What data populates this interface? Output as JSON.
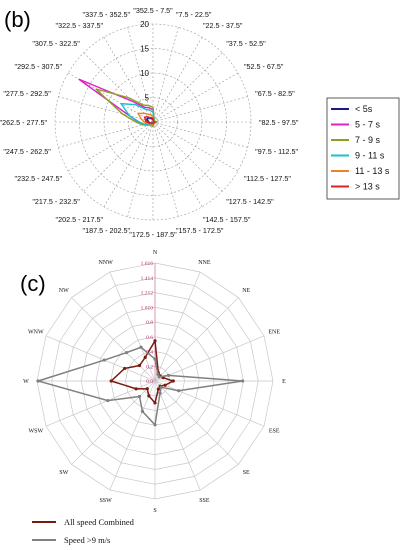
{
  "panels": {
    "b_label": "(b)",
    "c_label": "(c)"
  },
  "chart_data": [
    {
      "type": "radar",
      "panel": "(b)",
      "directions": [
        "\"352.5 - 7.5\"",
        "\"7.5 - 22.5\"",
        "\"22.5 - 37.5\"",
        "\"37.5 - 52.5\"",
        "\"52.5 - 67.5\"",
        "\"67.5 - 82.5\"",
        "\"82.5 - 97.5\"",
        "\"97.5 - 112.5\"",
        "\"112.5 - 127.5\"",
        "\"127.5 - 142.5\"",
        "\"142.5 - 157.5\"",
        "\"157.5 - 172.5\"",
        "\"172.5 - 187.5\"",
        "\"187.5 - 202.5\"",
        "\"202.5 - 217.5\"",
        "\"217.5 - 232.5\"",
        "\"232.5 - 247.5\"",
        "\"247.5 - 262.5\"",
        "\"262.5 - 277.5\"",
        "\"277.5 - 292.5\"",
        "\"292.5 - 307.5\"",
        "\"307.5 - 322.5\"",
        "\"322.5 - 337.5\"",
        "\"337.5 - 352.5\""
      ],
      "radial_ticks": [
        "0",
        "5",
        "10",
        "15",
        "20"
      ],
      "rlim": [
        0,
        20
      ],
      "legend_position": "right",
      "series": [
        {
          "name": "< 5s",
          "color": "#1a1a8c",
          "values": [
            0.5,
            0.3,
            0.2,
            0.2,
            0.2,
            0.2,
            0.3,
            0.2,
            0.2,
            0.2,
            0.2,
            0.3,
            0.4,
            0.3,
            0.3,
            0.3,
            0.4,
            0.6,
            0.9,
            1.2,
            1.4,
            1.2,
            0.8,
            0.6
          ]
        },
        {
          "name": "5 - 7 s",
          "color": "#e020c8",
          "values": [
            2.5,
            0.8,
            0.5,
            0.4,
            0.4,
            0.5,
            0.7,
            0.5,
            0.4,
            0.4,
            0.4,
            0.5,
            0.8,
            0.7,
            0.6,
            0.7,
            1.2,
            2.0,
            3.0,
            5.0,
            17.5,
            6.0,
            3.5,
            3.0
          ]
        },
        {
          "name": "7 - 9 s",
          "color": "#8aa020",
          "values": [
            3.0,
            0.9,
            0.5,
            0.4,
            0.4,
            0.5,
            0.8,
            0.6,
            0.4,
            0.4,
            0.4,
            0.5,
            0.9,
            0.8,
            0.7,
            0.8,
            1.3,
            2.2,
            3.5,
            6.5,
            13.5,
            7.0,
            4.0,
            3.5
          ]
        },
        {
          "name": "9 - 11 s",
          "color": "#18c0d0",
          "values": [
            2.0,
            0.7,
            0.4,
            0.3,
            0.3,
            0.4,
            0.6,
            0.5,
            0.3,
            0.3,
            0.3,
            0.4,
            0.7,
            0.6,
            0.5,
            0.6,
            1.0,
            1.8,
            2.8,
            5.0,
            7.5,
            5.0,
            3.0,
            2.5
          ]
        },
        {
          "name": "11 - 13 s",
          "color": "#f08020",
          "values": [
            1.2,
            0.5,
            0.3,
            0.3,
            0.3,
            0.3,
            0.5,
            0.4,
            0.3,
            0.3,
            0.3,
            0.3,
            0.5,
            0.5,
            0.4,
            0.5,
            0.8,
            1.2,
            1.8,
            2.5,
            3.5,
            2.5,
            1.8,
            1.5
          ]
        },
        {
          "name": "> 13 s",
          "color": "#e02020",
          "values": [
            0.7,
            0.3,
            0.2,
            0.2,
            0.2,
            0.2,
            0.4,
            0.3,
            0.2,
            0.2,
            0.2,
            0.2,
            0.3,
            0.3,
            0.3,
            0.3,
            0.5,
            0.8,
            1.2,
            1.6,
            2.0,
            1.5,
            1.0,
            0.9
          ]
        }
      ]
    },
    {
      "type": "radar",
      "panel": "(c)",
      "directions": [
        "N",
        "NNE",
        "NE",
        "ENE",
        "E",
        "ESE",
        "SE",
        "SSE",
        "S",
        "SSW",
        "SW",
        "WSW",
        "W",
        "WNW",
        "NW",
        "NNW"
      ],
      "radial_ticks": [
        "0.0",
        "0.2",
        "0.4",
        "0.6",
        "0.8",
        "1.010",
        "1.212",
        "1.414",
        "1.616"
      ],
      "rlim": [
        0,
        1.616
      ],
      "legend_position": "bottom-left",
      "series": [
        {
          "name": "All speed Combined",
          "color": "#7a1a10",
          "values": [
            0.55,
            0.12,
            0.1,
            0.12,
            0.25,
            0.15,
            0.1,
            0.12,
            0.3,
            0.22,
            0.15,
            0.28,
            0.6,
            0.45,
            0.3,
            0.35
          ]
        },
        {
          "name": "Speed >9 m/s",
          "color": "#808080",
          "values": [
            0.3,
            0.1,
            0.08,
            0.2,
            1.2,
            0.35,
            0.12,
            0.18,
            0.6,
            0.45,
            0.3,
            0.7,
            1.6,
            0.75,
            0.55,
            0.5
          ]
        }
      ]
    }
  ]
}
